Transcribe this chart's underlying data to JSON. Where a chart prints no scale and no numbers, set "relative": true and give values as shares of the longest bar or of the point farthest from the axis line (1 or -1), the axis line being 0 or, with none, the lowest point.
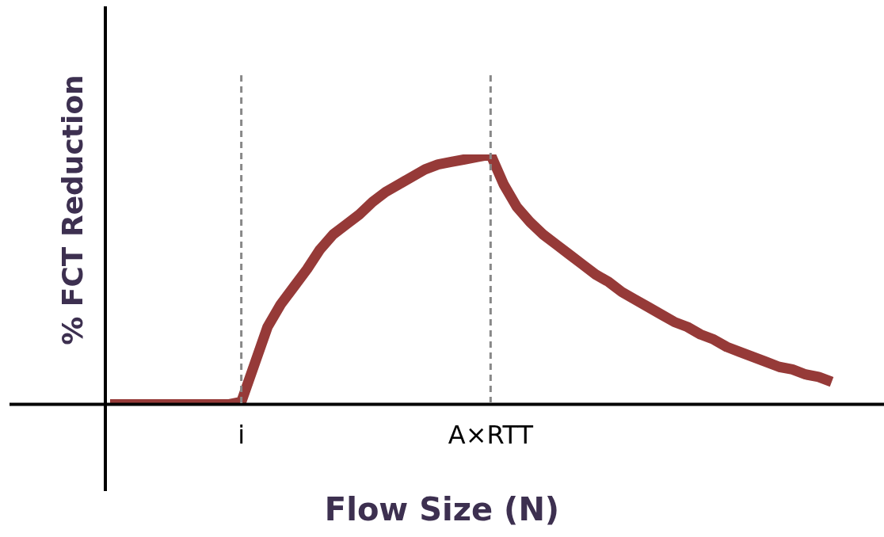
{
  "chart_data": {
    "type": "line",
    "relative": true,
    "xlabel": "Flow Size (N)",
    "ylabel": "% FCT Reduction",
    "categories": [
      null,
      null,
      null,
      null,
      null,
      null,
      null,
      null,
      null,
      null,
      "i",
      null,
      null,
      null,
      null,
      null,
      null,
      null,
      null,
      null,
      null,
      null,
      null,
      null,
      null,
      null,
      null,
      null,
      null,
      "A×RTT",
      null,
      null,
      null,
      null,
      null,
      null,
      null,
      null,
      null,
      null,
      null,
      null,
      null,
      null,
      null,
      null,
      null,
      null,
      null,
      null,
      null,
      null,
      null,
      null,
      null,
      null
    ],
    "series": [
      {
        "color": "#963a38",
        "values": [
          0,
          0,
          0,
          0,
          0,
          0,
          0,
          0,
          0,
          0,
          0.01,
          0.16,
          0.31,
          0.4,
          0.47,
          0.54,
          0.62,
          0.68,
          0.72,
          0.76,
          0.81,
          0.85,
          0.88,
          0.91,
          0.94,
          0.96,
          0.97,
          0.98,
          0.99,
          1,
          0.88,
          0.79,
          0.73,
          0.68,
          0.64,
          0.6,
          0.56,
          0.52,
          0.49,
          0.45,
          0.42,
          0.39,
          0.36,
          0.33,
          0.31,
          0.28,
          0.26,
          0.23,
          0.21,
          0.19,
          0.17,
          0.15,
          0.14,
          0.12,
          0.11,
          0.09
        ]
      }
    ],
    "ref_lines": [
      {
        "axis": "x",
        "value": "i",
        "color": "#888888",
        "line_style": "dashed"
      },
      {
        "axis": "x",
        "value": "A×RTT",
        "color": "#888888",
        "line_style": "dashed"
      }
    ],
    "grid": false,
    "legend": false,
    "marker": "none",
    "line_style": "solid"
  }
}
